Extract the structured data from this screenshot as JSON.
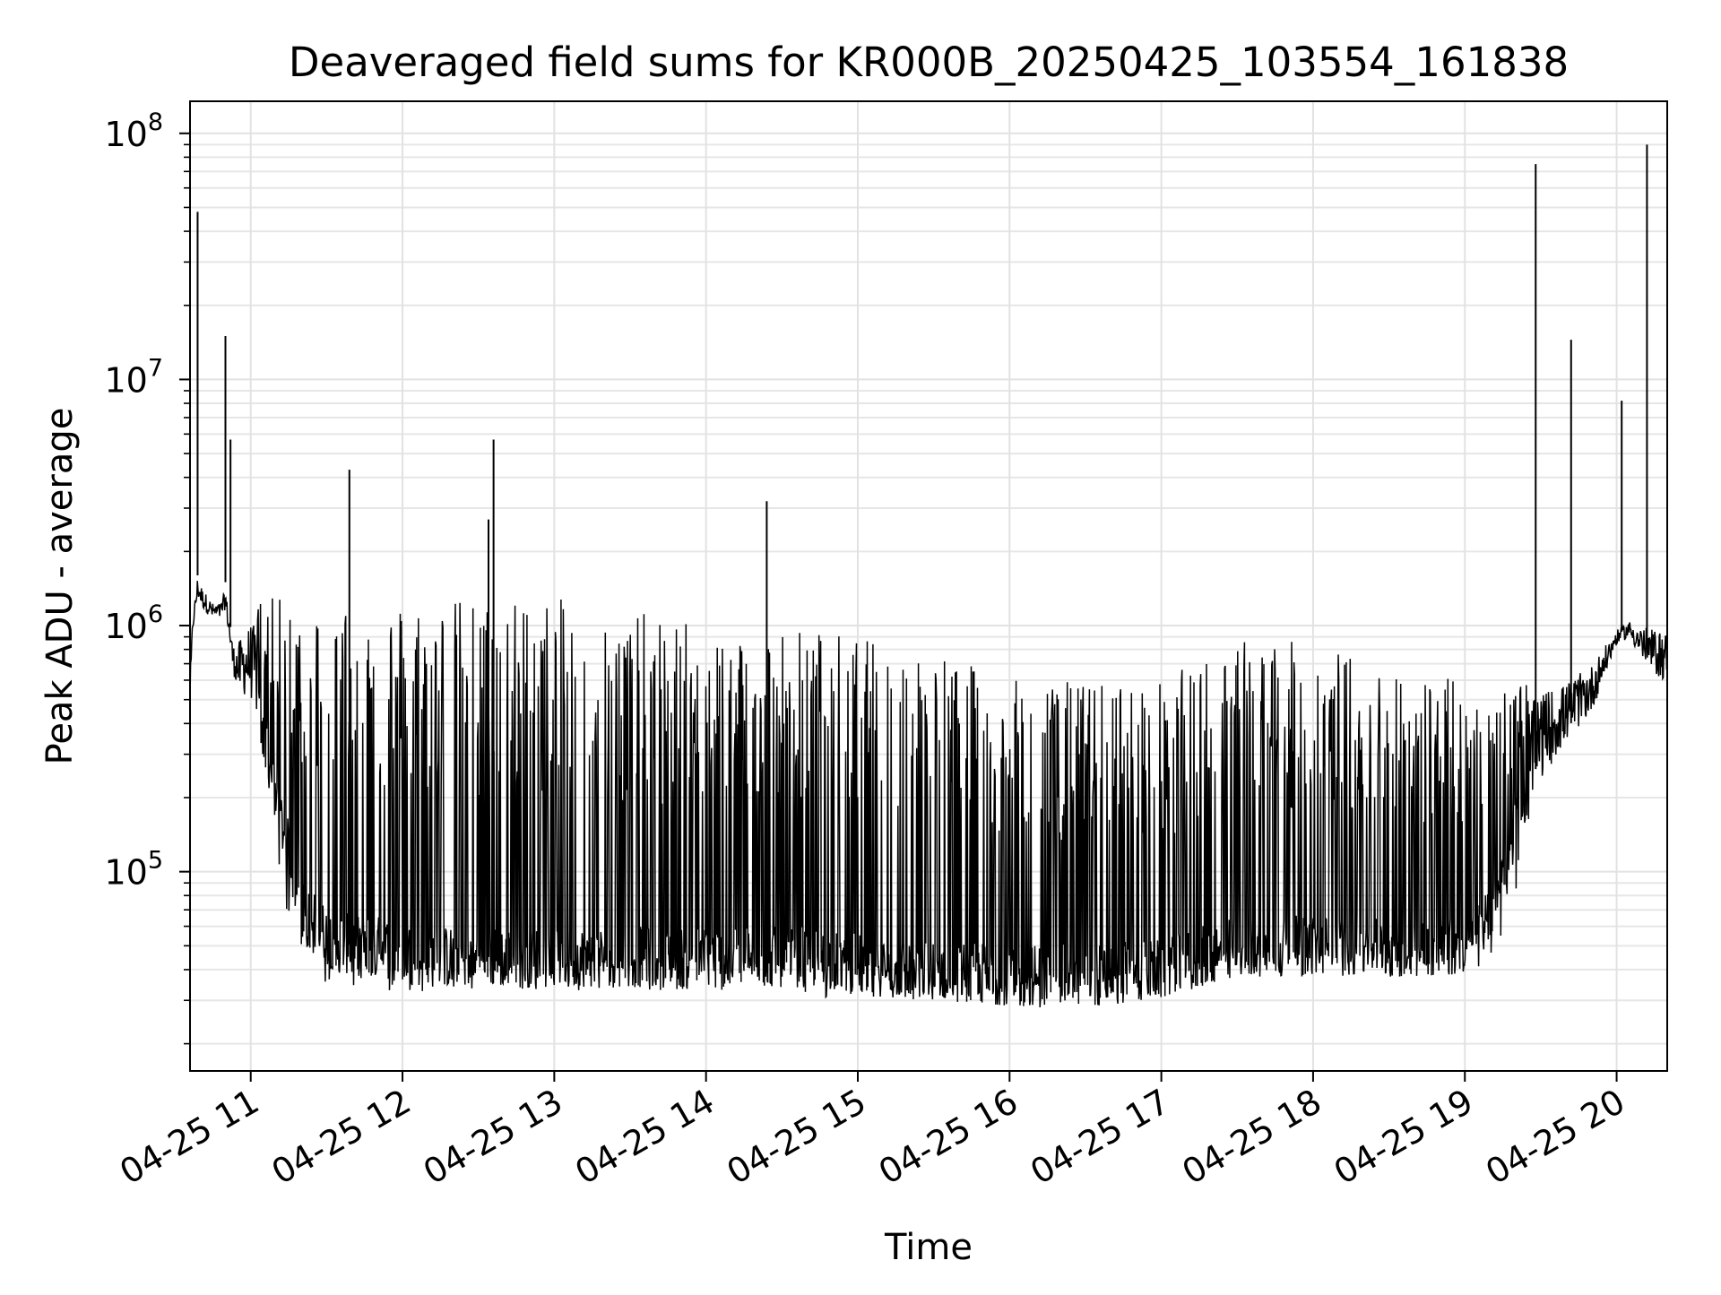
{
  "chart_data": {
    "type": "line",
    "title": "Deaveraged field sums for KR000B_20250425_103554_161838",
    "xlabel": "Time",
    "ylabel": "Peak ADU - average",
    "yscale": "log",
    "xlim": [
      "2025-04-25 10:36",
      "2025-04-25 20:20"
    ],
    "ylim": [
      15500,
      135000000
    ],
    "grid": "on (major and minor)",
    "line_color": "#000000",
    "xticks": [
      {
        "time": "2025-04-25 11:00",
        "label": "04-25 11"
      },
      {
        "time": "2025-04-25 12:00",
        "label": "04-25 12"
      },
      {
        "time": "2025-04-25 13:00",
        "label": "04-25 13"
      },
      {
        "time": "2025-04-25 14:00",
        "label": "04-25 14"
      },
      {
        "time": "2025-04-25 15:00",
        "label": "04-25 15"
      },
      {
        "time": "2025-04-25 16:00",
        "label": "04-25 16"
      },
      {
        "time": "2025-04-25 17:00",
        "label": "04-25 17"
      },
      {
        "time": "2025-04-25 18:00",
        "label": "04-25 18"
      },
      {
        "time": "2025-04-25 19:00",
        "label": "04-25 19"
      },
      {
        "time": "2025-04-25 20:00",
        "label": "04-25 20"
      }
    ],
    "yticks": [
      {
        "value": 100000,
        "base": "10",
        "exp": "5"
      },
      {
        "value": 1000000,
        "base": "10",
        "exp": "6"
      },
      {
        "value": 10000000,
        "base": "10",
        "exp": "7"
      },
      {
        "value": 100000000,
        "base": "10",
        "exp": "8"
      }
    ],
    "series": [
      {
        "x": [
          "2025-04-25 10:36",
          "2025-04-25 10:37",
          "2025-04-25 10:39",
          "2025-04-25 10:41",
          "2025-04-25 10:45",
          "2025-04-25 10:48",
          "2025-04-25 10:50",
          "2025-04-25 10:53",
          "2025-04-25 10:55",
          "2025-04-25 11:00",
          "2025-04-25 11:05",
          "2025-04-25 11:10",
          "2025-04-25 11:15",
          "2025-04-25 11:20",
          "2025-04-25 11:30",
          "2025-04-25 11:40",
          "2025-04-25 11:50",
          "2025-04-25 12:00",
          "2025-04-25 12:10",
          "2025-04-25 12:20",
          "2025-04-25 12:30",
          "2025-04-25 12:40",
          "2025-04-25 12:50",
          "2025-04-25 13:00",
          "2025-04-25 13:20",
          "2025-04-25 13:40",
          "2025-04-25 14:00",
          "2025-04-25 14:20",
          "2025-04-25 14:40",
          "2025-04-25 15:00",
          "2025-04-25 15:30",
          "2025-04-25 16:00",
          "2025-04-25 16:30",
          "2025-04-25 17:00",
          "2025-04-25 17:30",
          "2025-04-25 18:00",
          "2025-04-25 18:30",
          "2025-04-25 19:00",
          "2025-04-25 19:10",
          "2025-04-25 19:20",
          "2025-04-25 19:30",
          "2025-04-25 19:40",
          "2025-04-25 19:50",
          "2025-04-25 20:00",
          "2025-04-25 20:05",
          "2025-04-25 20:10",
          "2025-04-25 20:15",
          "2025-04-25 20:20"
        ],
        "baseline": [
          600000,
          1100000,
          1600000,
          1400000,
          1200000,
          1300000,
          1500000,
          800000,
          650000,
          550000,
          350000,
          200000,
          120000,
          70000,
          55000,
          50000,
          50000,
          47000,
          45000,
          45000,
          45000,
          45000,
          45000,
          45000,
          45000,
          45000,
          45000,
          45000,
          45000,
          42000,
          40000,
          38000,
          38000,
          40000,
          50000,
          50000,
          50000,
          50000,
          70000,
          150000,
          300000,
          380000,
          500000,
          950000,
          1000000,
          850000,
          750000,
          650000
        ],
        "upper_envelope": [
          700000,
          1100000,
          1700000,
          1500000,
          1300000,
          1300000,
          1500000,
          900000,
          1000000,
          1300000,
          1300000,
          1300000,
          1300000,
          1300000,
          1300000,
          1300000,
          1300000,
          1300000,
          1300000,
          1300000,
          1300000,
          1300000,
          1300000,
          1300000,
          1200000,
          1100000,
          1000000,
          1000000,
          1000000,
          900000,
          800000,
          600000,
          600000,
          600000,
          900000,
          850000,
          700000,
          600000,
          600000,
          600000,
          700000,
          700000,
          800000,
          1000000,
          1100000,
          1100000,
          1100000,
          1100000
        ],
        "lower_envelope": [
          400000,
          900000,
          1200000,
          1100000,
          1000000,
          1000000,
          1100000,
          600000,
          450000,
          400000,
          250000,
          130000,
          60000,
          40000,
          35000,
          33000,
          32000,
          33000,
          32000,
          32000,
          33000,
          33000,
          33000,
          33000,
          33000,
          33000,
          33000,
          32000,
          31000,
          30000,
          29000,
          28000,
          28000,
          30000,
          36000,
          37000,
          37000,
          37000,
          40000,
          80000,
          180000,
          280000,
          380000,
          800000,
          850000,
          650000,
          550000,
          500000
        ],
        "spikes": [
          {
            "x": "2025-04-25 10:39",
            "y": 48000000
          },
          {
            "x": "2025-04-25 10:50",
            "y": 15000000
          },
          {
            "x": "2025-04-25 10:52",
            "y": 5700000
          },
          {
            "x": "2025-04-25 11:39",
            "y": 4300000
          },
          {
            "x": "2025-04-25 12:34",
            "y": 2700000
          },
          {
            "x": "2025-04-25 12:36",
            "y": 5700000
          },
          {
            "x": "2025-04-25 14:24",
            "y": 3200000
          },
          {
            "x": "2025-04-25 19:28",
            "y": 75000000
          },
          {
            "x": "2025-04-25 19:42",
            "y": 14500000
          },
          {
            "x": "2025-04-25 20:02",
            "y": 8200000
          },
          {
            "x": "2025-04-25 20:12",
            "y": 90000000
          }
        ]
      }
    ]
  }
}
